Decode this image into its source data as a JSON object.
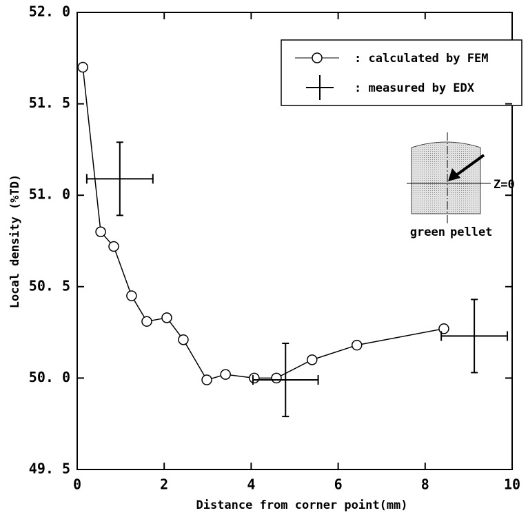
{
  "chart_data": {
    "type": "line",
    "x_label": "Distance from corner point(mm)",
    "y_label": "Local density (%TD)",
    "xlim": [
      0,
      10
    ],
    "xticks": [
      0,
      2,
      4,
      6,
      8,
      10
    ],
    "ylim": [
      49.5,
      52.0
    ],
    "yticks": [
      {
        "value": 49.5,
        "label": "49. 5"
      },
      {
        "value": 50.0,
        "label": "50. 0"
      },
      {
        "value": 50.5,
        "label": "50. 5"
      },
      {
        "value": 51.0,
        "label": "51. 0"
      },
      {
        "value": 51.5,
        "label": "51. 5"
      },
      {
        "value": 52.0,
        "label": "52. 0"
      }
    ],
    "series": [
      {
        "name": ": calculated by FEM",
        "color": "#000000",
        "x": [
          0.13,
          0.54,
          0.84,
          1.25,
          1.6,
          2.06,
          2.44,
          2.98,
          3.41,
          4.07,
          4.58,
          5.4,
          6.43,
          8.43
        ],
        "values": [
          51.7,
          50.8,
          50.72,
          50.45,
          50.31,
          50.33,
          50.21,
          49.99,
          50.02,
          50.0,
          50.0,
          50.1,
          50.18,
          50.27
        ]
      },
      {
        "name": ": measured by EDX",
        "color": "#000000",
        "x": [
          0.98,
          4.79,
          9.13
        ],
        "x_error": [
          0.76,
          0.75,
          0.76
        ],
        "values": [
          51.09,
          49.99,
          50.23
        ],
        "y_error": [
          0.2,
          0.2,
          0.2
        ]
      }
    ],
    "annotations": [
      "Z=0",
      "green",
      "pellet"
    ]
  }
}
